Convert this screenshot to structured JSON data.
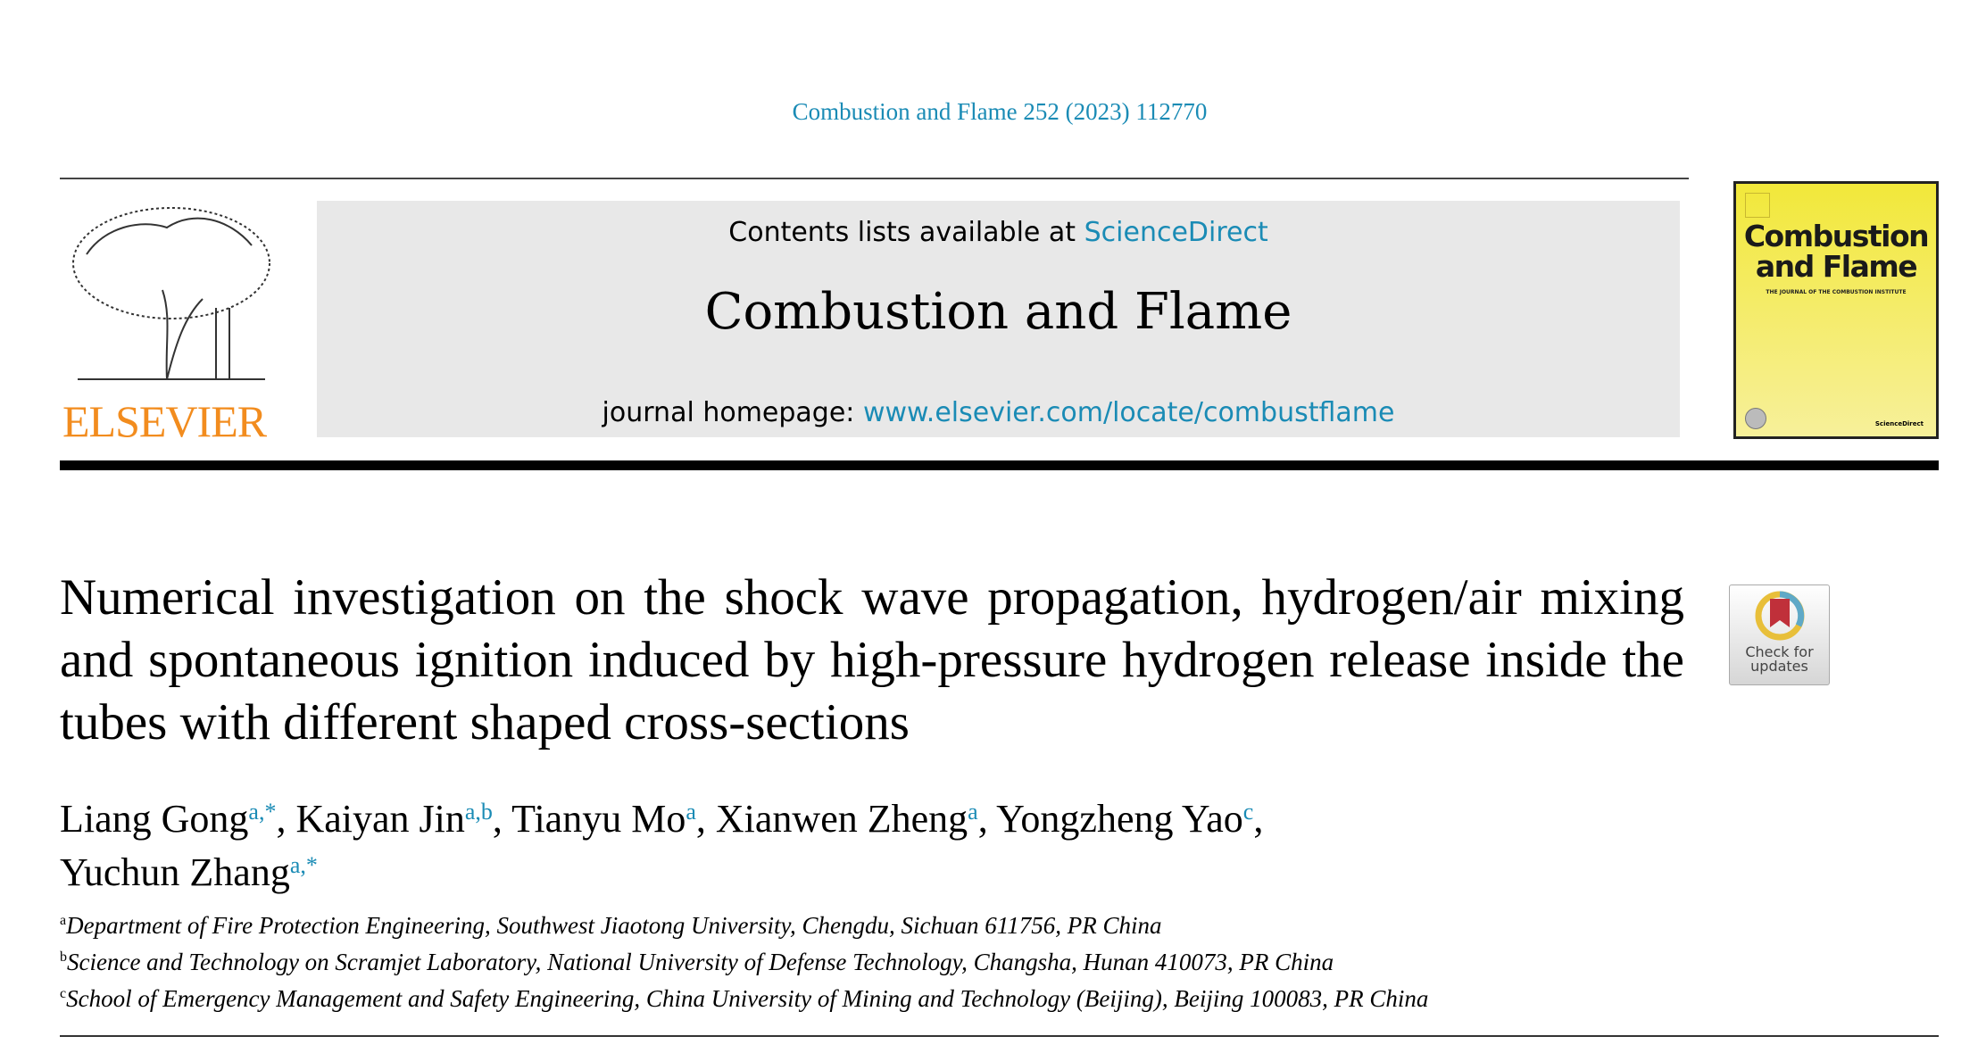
{
  "journal_ref": "Combustion and Flame 252 (2023) 112770",
  "header": {
    "contents_prefix": "Contents lists available at ",
    "contents_link": "ScienceDirect",
    "journal_title": "Combustion and Flame",
    "homepage_prefix": "journal homepage: ",
    "homepage_link": "www.elsevier.com/locate/combustflame",
    "publisher_logo": "ELSEVIER"
  },
  "cover": {
    "title": "Combustion and Flame",
    "subtitle": "THE JOURNAL OF THE COMBUSTION INSTITUTE",
    "footer": "ScienceDirect"
  },
  "crossmark": {
    "label": "Check for updates"
  },
  "article": {
    "title": "Numerical investigation on the shock wave propagation, hydrogen/air mixing and spontaneous ignition induced by high-pressure hydrogen release inside the tubes with different shaped cross-sections",
    "authors": [
      {
        "name": "Liang Gong",
        "sup": "a,*",
        "sep": ", "
      },
      {
        "name": "Kaiyan Jin",
        "sup": "a,b",
        "sep": ", "
      },
      {
        "name": "Tianyu Mo",
        "sup": "a",
        "sep": ", "
      },
      {
        "name": "Xianwen Zheng",
        "sup": "a",
        "sep": ", "
      },
      {
        "name": "Yongzheng Yao",
        "sup": "c",
        "sep": ","
      },
      {
        "name": "Yuchun Zhang",
        "sup": "a,*",
        "sep": ""
      }
    ],
    "affiliations": [
      {
        "key": "a",
        "text": "Department of Fire Protection Engineering, Southwest Jiaotong University, Chengdu, Sichuan 611756, PR China"
      },
      {
        "key": "b",
        "text": "Science and Technology on Scramjet Laboratory, National University of Defense Technology, Changsha, Hunan 410073, PR China"
      },
      {
        "key": "c",
        "text": "School of Emergency Management and Safety Engineering, China University of Mining and Technology (Beijing), Beijing 100083, PR China"
      }
    ]
  },
  "colors": {
    "link": "#1a8bb5",
    "elsevier_orange": "#f28c1e",
    "cover_yellow": "#f2e83a"
  }
}
